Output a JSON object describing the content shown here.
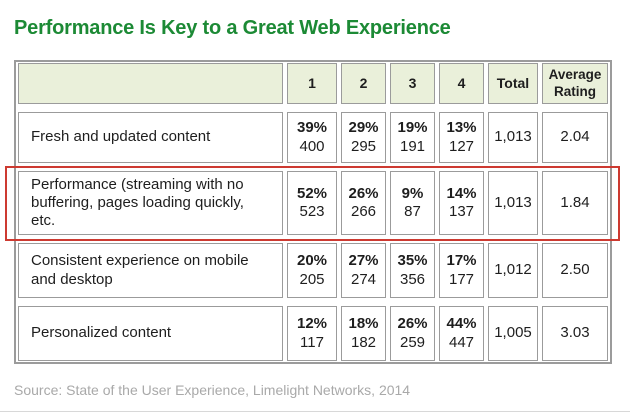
{
  "page": {
    "title": "Performance Is Key to a Great Web Experience",
    "source": "Source: State of the User Experience, Limelight Networks, 2014"
  },
  "colors": {
    "title_green": "#1c8a35",
    "header_background": "#eaf0da",
    "cell_border_gray": "#9b9b9b",
    "highlight_red": "#cd3a31",
    "source_text_gray": "#a9a9a9",
    "body_text": "#1e1e1e"
  },
  "chart_data": {
    "type": "table",
    "title": "Performance Is Key to a Great Web Experience",
    "columns": [
      "",
      "1",
      "2",
      "3",
      "4",
      "Total",
      "Average Rating"
    ],
    "rows": [
      {
        "label": "Fresh and updated content",
        "ratings": [
          {
            "percent": "39%",
            "count": "400"
          },
          {
            "percent": "29%",
            "count": "295"
          },
          {
            "percent": "19%",
            "count": "191"
          },
          {
            "percent": "13%",
            "count": "127"
          }
        ],
        "total": "1,013",
        "average_rating": "2.04",
        "highlighted": false
      },
      {
        "label": "Performance (streaming with no buffering, pages loading quickly, etc.",
        "ratings": [
          {
            "percent": "52%",
            "count": "523"
          },
          {
            "percent": "26%",
            "count": "266"
          },
          {
            "percent": "9%",
            "count": "87"
          },
          {
            "percent": "14%",
            "count": "137"
          }
        ],
        "total": "1,013",
        "average_rating": "1.84",
        "highlighted": true
      },
      {
        "label": "Consistent experience on mobile and desktop",
        "ratings": [
          {
            "percent": "20%",
            "count": "205"
          },
          {
            "percent": "27%",
            "count": "274"
          },
          {
            "percent": "35%",
            "count": "356"
          },
          {
            "percent": "17%",
            "count": "177"
          }
        ],
        "total": "1,012",
        "average_rating": "2.50",
        "highlighted": false
      },
      {
        "label": "Personalized content",
        "ratings": [
          {
            "percent": "12%",
            "count": "117"
          },
          {
            "percent": "18%",
            "count": "182"
          },
          {
            "percent": "26%",
            "count": "259"
          },
          {
            "percent": "44%",
            "count": "447"
          }
        ],
        "total": "1,005",
        "average_rating": "3.03",
        "highlighted": false
      }
    ],
    "annotations": [
      "Red rectangle outlines the Performance row"
    ],
    "legend_position": "none",
    "grid": true
  }
}
